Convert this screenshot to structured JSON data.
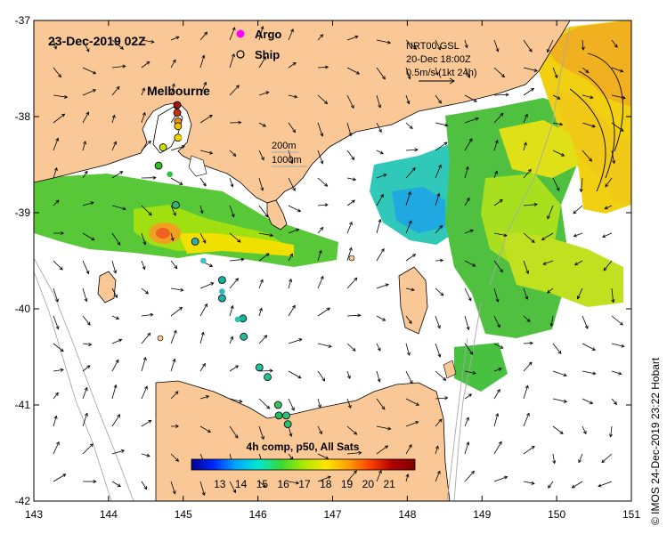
{
  "map": {
    "date_label": "23-Dec-2019 02Z",
    "city_label": "Melbourne",
    "legend": {
      "argo_label": "Argo",
      "ship_label": "Ship",
      "argo_color": "#ff00ff",
      "ship_color": "#000000"
    },
    "current_info": {
      "line1": "NRT00 GSL",
      "line2": "20-Dec 18:00Z",
      "line3": "0.5m/s (1kt 24h)"
    },
    "depth_legend": {
      "line1": "200m",
      "line2": "1000m"
    },
    "colorbar": {
      "title": "4h comp, p50, All Sats",
      "ticks": [
        "13",
        "14",
        "15",
        "16",
        "17",
        "18",
        "19",
        "20",
        "21"
      ],
      "colors": [
        "#00008f",
        "#0028ff",
        "#00a8ff",
        "#00e8d0",
        "#38d838",
        "#a8e800",
        "#ffe800",
        "#ffa000",
        "#ff4000",
        "#b00000",
        "#800000"
      ]
    },
    "credit": "© IMOS 24-Dec-2019 23:22 Hobart",
    "x_ticks": [
      "143",
      "144",
      "145",
      "146",
      "147",
      "148",
      "149",
      "150",
      "151"
    ],
    "y_ticks": [
      "-37",
      "-38",
      "-39",
      "-40",
      "-41",
      "-42"
    ],
    "colors": {
      "land": "#f9c896",
      "ocean": "#ffffff",
      "coast": "#000000"
    },
    "ship_points": [
      {
        "lon": 144.92,
        "lat": -37.88,
        "color": "#a01808"
      },
      {
        "lon": 144.92,
        "lat": -37.96,
        "color": "#c83010"
      },
      {
        "lon": 144.93,
        "lat": -38.05,
        "color": "#f09010"
      },
      {
        "lon": 144.93,
        "lat": -38.1,
        "color": "#f4c000"
      },
      {
        "lon": 144.93,
        "lat": -38.22,
        "color": "#f8d800"
      },
      {
        "lon": 144.73,
        "lat": -38.32,
        "color": "#c8e000"
      },
      {
        "lon": 144.67,
        "lat": -38.51,
        "color": "#30c020"
      },
      {
        "lon": 144.9,
        "lat": -38.92,
        "color": "#38b080"
      },
      {
        "lon": 145.16,
        "lat": -39.3,
        "color": "#30a8b0"
      },
      {
        "lon": 145.52,
        "lat": -39.7,
        "color": "#18b0a0"
      },
      {
        "lon": 145.52,
        "lat": -39.89,
        "color": "#20b0a8"
      },
      {
        "lon": 145.8,
        "lat": -40.1,
        "color": "#10b8a0"
      },
      {
        "lon": 145.81,
        "lat": -40.29,
        "color": "#28b8a0"
      },
      {
        "lon": 146.02,
        "lat": -40.61,
        "color": "#20c0a0"
      },
      {
        "lon": 146.13,
        "lat": -40.71,
        "color": "#20c098"
      },
      {
        "lon": 146.27,
        "lat": -41.0,
        "color": "#38c060"
      },
      {
        "lon": 146.28,
        "lat": -41.11,
        "color": "#20c060"
      },
      {
        "lon": 146.38,
        "lat": -41.11,
        "color": "#30c080"
      },
      {
        "lon": 146.4,
        "lat": -41.2,
        "color": "#28c070"
      }
    ],
    "argo_points": [
      {
        "lon": 144.94,
        "lat": -38.22,
        "color": "#f8d000"
      },
      {
        "lon": 144.82,
        "lat": -38.6,
        "color": "#30c040"
      },
      {
        "lon": 145.27,
        "lat": -39.5,
        "color": "#40c0c8"
      },
      {
        "lon": 145.52,
        "lat": -39.82,
        "color": "#30b8b8"
      },
      {
        "lon": 145.73,
        "lat": -40.11,
        "color": "#30c0b0"
      }
    ]
  }
}
